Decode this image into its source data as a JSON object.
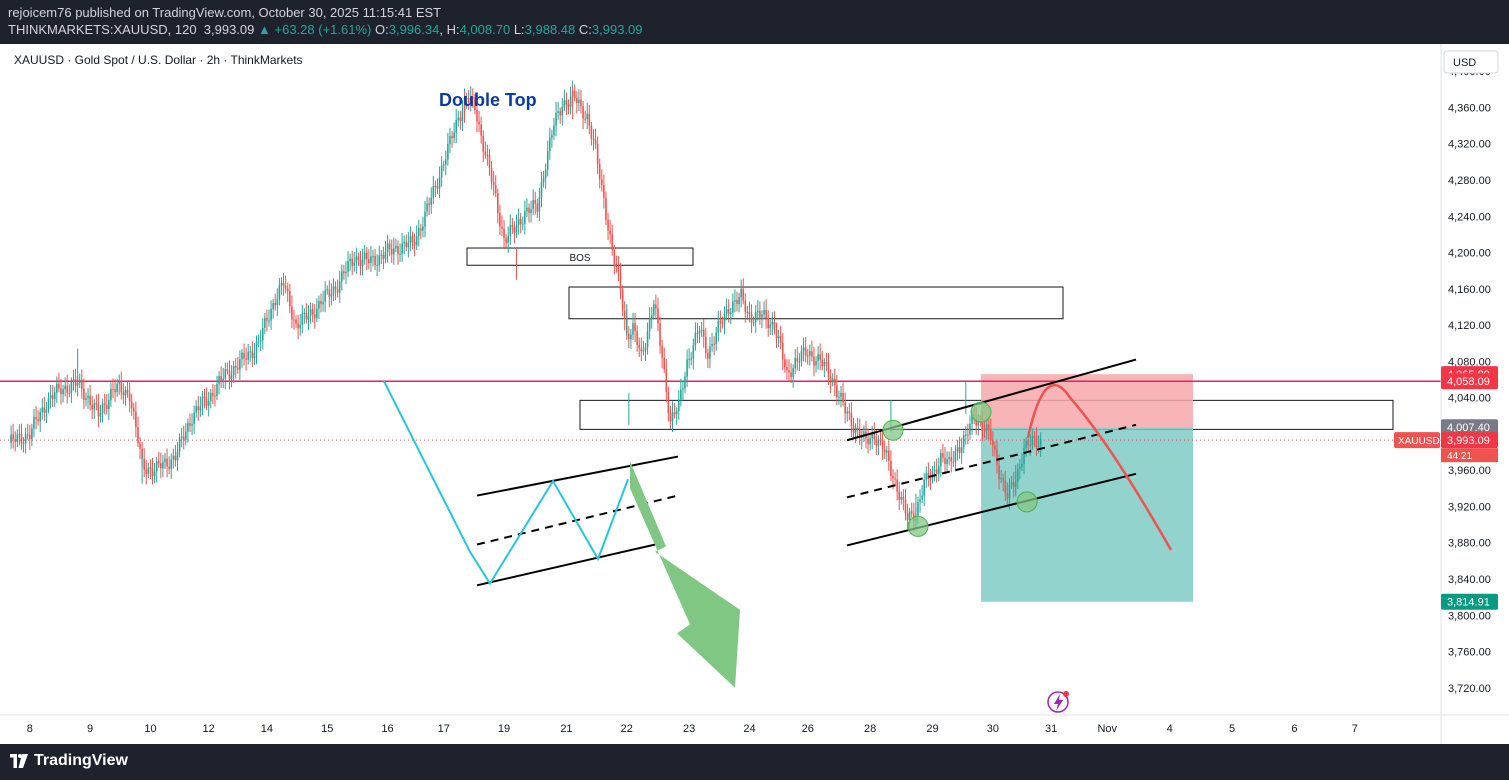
{
  "header": {
    "author_line": "rejoicem76 published on TradingView.com, October 30, 2025 11:15:41 EST",
    "symbol": "THINKMARKETS:XAUUSD, 120",
    "last": "3,993.09",
    "change": "+63.28 (+1.61%)",
    "o_label": "O:",
    "o": "3,996.34",
    "h_label": "H:",
    "h": "4,008.70",
    "l_label": "L:",
    "l": "3,988.48",
    "c_label": "C:",
    "c": "3,993.09"
  },
  "chart_title": "XAUUSD · Gold Spot / U.S. Dollar · 2h · ThinkMarkets",
  "currency_button": "USD",
  "footer": {
    "brand": "TradingView"
  },
  "colors": {
    "up": "#26a69a",
    "down": "#ef5350",
    "resistance": "#e91e63",
    "sketch": "#26c6da",
    "arrow": "#81c784",
    "stop": "#f7a8ab",
    "target": "#80cbc4"
  },
  "chart_data": {
    "type": "candlestick",
    "ylim": [
      3690,
      4430
    ],
    "y_ticks": [
      "4,400.00",
      "4,360.00",
      "4,320.00",
      "4,280.00",
      "4,240.00",
      "4,200.00",
      "4,160.00",
      "4,120.00",
      "4,080.00",
      "4,040.00",
      "4,000.00",
      "3,960.00",
      "3,920.00",
      "3,880.00",
      "3,840.00",
      "3,800.00",
      "3,760.00",
      "3,720.00"
    ],
    "y_tick_values": [
      4400,
      4360,
      4320,
      4280,
      4240,
      4200,
      4160,
      4120,
      4080,
      4040,
      4000,
      3960,
      3920,
      3880,
      3840,
      3800,
      3760,
      3720
    ],
    "x_ticks": [
      "8",
      "9",
      "10",
      "12",
      "14",
      "15",
      "16",
      "17",
      "19",
      "21",
      "22",
      "23",
      "24",
      "26",
      "28",
      "29",
      "30",
      "31",
      "Nov",
      "4",
      "5",
      "6",
      "7"
    ],
    "x_tick_index": [
      10,
      39,
      68,
      96,
      124,
      153,
      182,
      209,
      238,
      268,
      297,
      327,
      356,
      384,
      414,
      444,
      473,
      501,
      528,
      558,
      588,
      618,
      647
    ],
    "close_path": [
      [
        0,
        3990
      ],
      [
        10,
        4000
      ],
      [
        18,
        4035
      ],
      [
        25,
        4050
      ],
      [
        33,
        4055
      ],
      [
        38,
        4040
      ],
      [
        43,
        4020
      ],
      [
        50,
        4050
      ],
      [
        58,
        4045
      ],
      [
        64,
        3965
      ],
      [
        70,
        3960
      ],
      [
        80,
        3975
      ],
      [
        88,
        4020
      ],
      [
        96,
        4040
      ],
      [
        104,
        4065
      ],
      [
        112,
        4080
      ],
      [
        120,
        4100
      ],
      [
        128,
        4150
      ],
      [
        132,
        4165
      ],
      [
        138,
        4120
      ],
      [
        144,
        4130
      ],
      [
        150,
        4145
      ],
      [
        158,
        4165
      ],
      [
        166,
        4195
      ],
      [
        172,
        4190
      ],
      [
        178,
        4195
      ],
      [
        186,
        4205
      ],
      [
        194,
        4210
      ],
      [
        200,
        4240
      ],
      [
        206,
        4280
      ],
      [
        212,
        4320
      ],
      [
        216,
        4350
      ],
      [
        220,
        4370
      ],
      [
        224,
        4360
      ],
      [
        228,
        4320
      ],
      [
        233,
        4270
      ],
      [
        238,
        4215
      ],
      [
        243,
        4225
      ],
      [
        248,
        4245
      ],
      [
        254,
        4250
      ],
      [
        258,
        4300
      ],
      [
        262,
        4340
      ],
      [
        266,
        4365
      ],
      [
        272,
        4370
      ],
      [
        278,
        4350
      ],
      [
        282,
        4310
      ],
      [
        286,
        4260
      ],
      [
        290,
        4200
      ],
      [
        294,
        4160
      ],
      [
        297,
        4110
      ],
      [
        300,
        4115
      ],
      [
        304,
        4085
      ],
      [
        310,
        4145
      ],
      [
        314,
        4085
      ],
      [
        318,
        4015
      ],
      [
        322,
        4030
      ],
      [
        326,
        4080
      ],
      [
        332,
        4115
      ],
      [
        336,
        4090
      ],
      [
        342,
        4120
      ],
      [
        346,
        4140
      ],
      [
        352,
        4150
      ],
      [
        356,
        4130
      ],
      [
        362,
        4130
      ],
      [
        368,
        4120
      ],
      [
        374,
        4065
      ],
      [
        378,
        4080
      ],
      [
        384,
        4090
      ],
      [
        390,
        4080
      ],
      [
        396,
        4060
      ],
      [
        402,
        4025
      ],
      [
        406,
        4010
      ],
      [
        412,
        3990
      ],
      [
        416,
        4000
      ],
      [
        420,
        3985
      ],
      [
        424,
        3960
      ],
      [
        428,
        3935
      ],
      [
        432,
        3905
      ],
      [
        436,
        3915
      ],
      [
        440,
        3945
      ],
      [
        444,
        3955
      ],
      [
        448,
        3975
      ],
      [
        452,
        3965
      ],
      [
        456,
        3985
      ],
      [
        460,
        3995
      ],
      [
        464,
        4020
      ],
      [
        468,
        4010
      ],
      [
        472,
        3995
      ],
      [
        476,
        3960
      ],
      [
        480,
        3930
      ],
      [
        484,
        3950
      ],
      [
        488,
        3985
      ],
      [
        492,
        3990
      ],
      [
        496,
        3993
      ]
    ],
    "swing_points": [
      [
        33,
        4059
      ],
      [
        64,
        3945
      ],
      [
        219,
        4378
      ],
      [
        244,
        4205
      ],
      [
        271,
        4382
      ],
      [
        297,
        4108
      ],
      [
        298,
        4010
      ],
      [
        424,
        4002
      ],
      [
        436,
        3899
      ],
      [
        460,
        4022
      ],
      [
        484,
        3931
      ]
    ],
    "resistance_line": 4058.09,
    "price_labels": [
      {
        "text": "4,065.89",
        "value": 4065.89,
        "color": "#f23645"
      },
      {
        "text": "4,058.09",
        "value": 4058.09,
        "color": "#f23645"
      },
      {
        "text": "4,007.40",
        "value": 4007.4,
        "color": "#787b86"
      },
      {
        "text": "3,993.09",
        "value": 3993.09,
        "color": "#f23645"
      },
      {
        "text": "3,814.91",
        "value": 3814.91,
        "color": "#089981"
      }
    ],
    "countdown": "44:21",
    "last_symbol_tag": "XAUUSD",
    "position": {
      "entry": 4007.4,
      "stop": 4065.89,
      "target": 3814.91
    },
    "zones": [
      {
        "label": "BOS",
        "from": 4186,
        "to": 4205
      },
      {
        "label": "",
        "from": 4127,
        "to": 4162
      },
      {
        "label": "",
        "from": 4005,
        "to": 4037
      }
    ],
    "annotations": [
      {
        "text": "Double Top"
      }
    ]
  }
}
